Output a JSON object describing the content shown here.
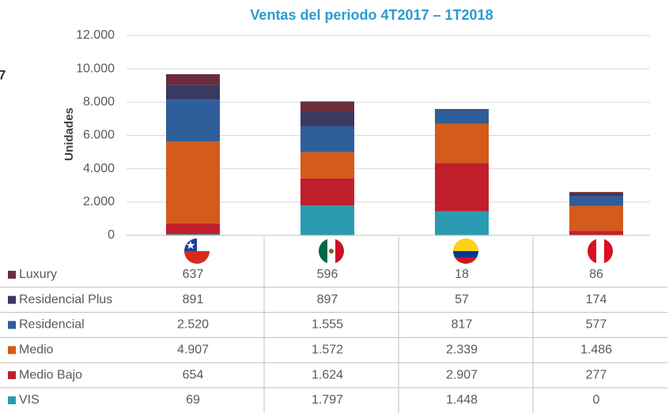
{
  "chart_data": {
    "type": "stacked_bar",
    "title": "Ventas del periodo 4T2017 – 1T2018",
    "annotations": [
      "7"
    ],
    "y_label": "Unidades",
    "categories": [
      null,
      null,
      null,
      null
    ],
    "ylim": [
      0,
      12000
    ],
    "yticks": [
      0,
      {
        "value": 2000,
        "label": "2.000"
      },
      {
        "value": 4000,
        "label": "4.000"
      },
      {
        "value": 6000,
        "label": "6.000"
      },
      {
        "value": 8000,
        "label": "8.000"
      },
      {
        "value": 10000,
        "label": "10.000"
      },
      {
        "value": 12000,
        "label": "12.000"
      }
    ],
    "grid": true,
    "series": [
      {
        "name": "Luxury",
        "color": "#6b2d3b",
        "values": [
          637,
          596,
          18,
          86
        ],
        "value_labels": [
          "637",
          "596",
          "18",
          "86"
        ]
      },
      {
        "name": "Residencial Plus",
        "color": "#393a62",
        "values": [
          891,
          897,
          57,
          174
        ],
        "value_labels": [
          "891",
          "897",
          "57",
          "174"
        ]
      },
      {
        "name": "Residencial",
        "color": "#2e5e99",
        "values": [
          2520,
          1555,
          817,
          577
        ],
        "value_labels": [
          "2.520",
          "1.555",
          "817",
          "577"
        ]
      },
      {
        "name": "Medio",
        "color": "#d45b19",
        "values": [
          4907,
          1572,
          2339,
          1486
        ],
        "value_labels": [
          "4.907",
          "1.572",
          "2.339",
          "1.486"
        ]
      },
      {
        "name": "Medio Bajo",
        "color": "#c11f2b",
        "values": [
          654,
          1624,
          2907,
          277
        ],
        "value_labels": [
          "654",
          "1.624",
          "2.907",
          "277"
        ]
      },
      {
        "name": "VIS",
        "color": "#2a9bb1",
        "values": [
          69,
          1797,
          1448,
          0
        ],
        "value_labels": [
          "69",
          "1.797",
          "1.448",
          "0"
        ]
      }
    ]
  }
}
